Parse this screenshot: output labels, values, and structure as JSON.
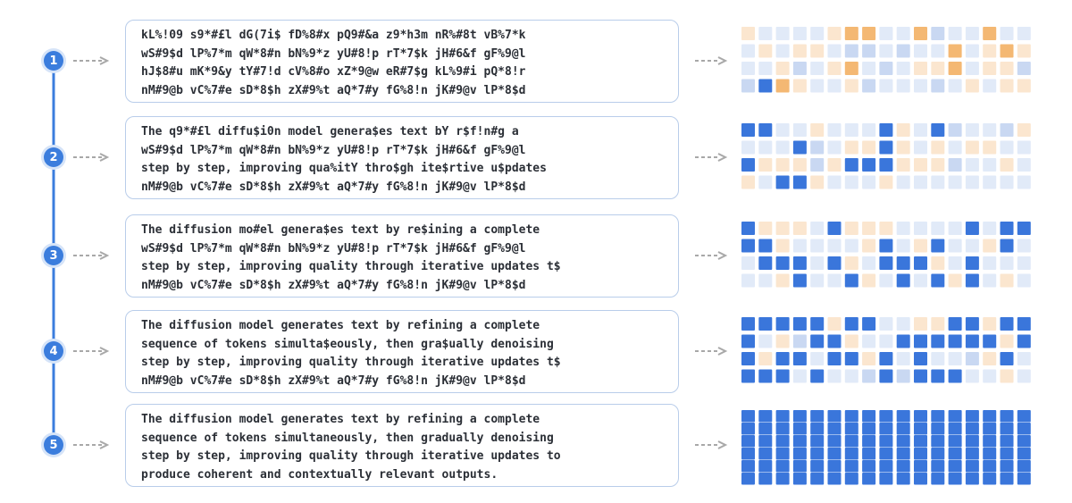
{
  "steps": [
    {
      "number": "1",
      "lines": [
        "kL%!09 s9*#£l dG(7i$ fD%8#x pQ9#&a z9*h3m nR%#8t vB%7*k",
        "wS#9$d lP%7*m qW*8#n bN%9*z yU#8!p rT*7$k jH#6&f gF%9@l",
        "hJ$8#u mK*9&y tY#7!d cV%8#o xZ*9@w eR#7$g kL%9#i pQ*8!r",
        "nM#9@b vC%7#e sD*8$h zX#9%t aQ*7#y fG%8!n jK#9@v lP*8$d"
      ]
    },
    {
      "number": "2",
      "lines": [
        "The q9*#£l diffu$i0n model genera$es text bY r$f!n#g a",
        "wS#9$d lP%7*m qW*8#n bN%9*z yU#8!p rT*7$k jH#6&f gF%9@l",
        "step by step, improving qua%itY thro$gh ite$rtive u$pdates",
        "nM#9@b vC%7#e sD*8$h zX#9%t aQ*7#y fG%8!n jK#9@v lP*8$d"
      ]
    },
    {
      "number": "3",
      "lines": [
        "The diffusion mo#el genera$es text by re$ining a complete",
        "wS#9$d lP%7*m qW*8#n bN%9*z yU#8!p rT*7$k jH#6&f gF%9@l",
        "step by step, improving quality through iterative updates t$",
        "nM#9@b vC%7#e sD*8$h zX#9%t aQ*7#y fG%8!n jK#9@v lP*8$d"
      ]
    },
    {
      "number": "4",
      "lines": [
        "The diffusion model generates text by refining a complete",
        "sequence of tokens simulta$eously, then gra$ually denoising",
        "step by step, improving quality through iterative updates t$",
        "nM#9@b vC%7#e sD*8$h zX#9%t aQ*7#y fG%8!n jK#9@v lP*8$d"
      ]
    },
    {
      "number": "5",
      "lines": [
        "The diffusion model generates text by refining a complete",
        "sequence of tokens simultaneously, then gradually denoising",
        "step by step, improving quality through iterative updates to",
        "produce coherent and contextually relevant outputs."
      ]
    }
  ]
}
